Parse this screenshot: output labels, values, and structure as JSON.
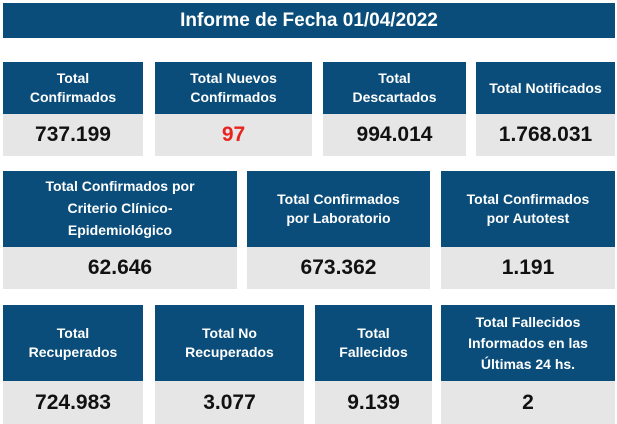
{
  "title": "Informe de Fecha 01/04/2022",
  "row1": [
    {
      "label": "Total\nConfirmados",
      "value": "737.199"
    },
    {
      "label": "Total Nuevos\nConfirmados",
      "value": "97"
    },
    {
      "label": "Total\nDescartados",
      "value": "994.014"
    },
    {
      "label": "Total Notificados",
      "value": "1.768.031"
    }
  ],
  "row2": [
    {
      "label": "Total Confirmados por\nCriterio Clínico-\nEpidemiológico",
      "value": "62.646"
    },
    {
      "label": "Total Confirmados\npor Laboratorio",
      "value": "673.362"
    },
    {
      "label": "Total Confirmados\npor Autotest",
      "value": "1.191"
    }
  ],
  "row3": [
    {
      "label": "Total\nRecuperados",
      "value": "724.983"
    },
    {
      "label": "Total No\nRecuperados",
      "value": "3.077"
    },
    {
      "label": "Total\nFallecidos",
      "value": "9.139"
    },
    {
      "label": "Total Fallecidos\nInformados en las\nÚltimas 24 hs.",
      "value": "2"
    }
  ],
  "colors": {
    "header_bg": "#0a4d7a",
    "value_bg": "#e6e6e6",
    "highlight": "#e8241e"
  }
}
